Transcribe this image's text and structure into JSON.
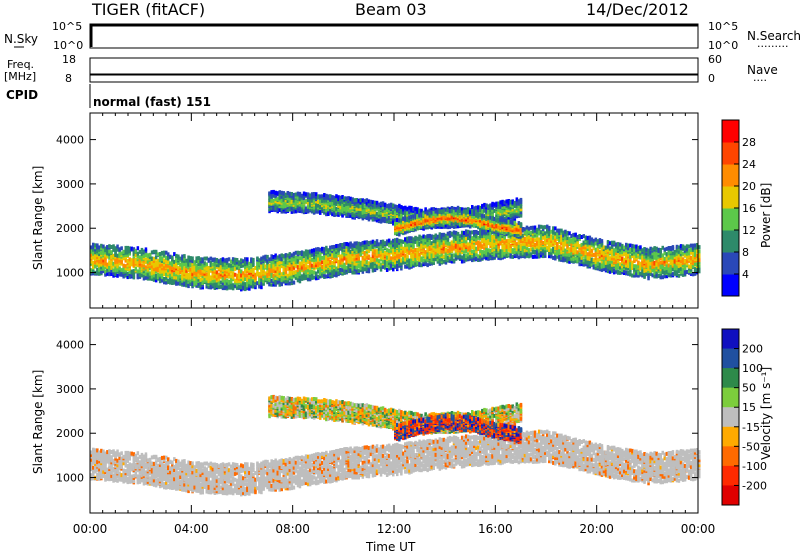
{
  "header": {
    "title": "TIGER (fitACF)",
    "beam": "Beam 03",
    "date": "14/Dec/2012"
  },
  "panels": {
    "nsky": {
      "label": "N.Sky",
      "ticks": [
        "10^5",
        "10^0"
      ],
      "right_ticks": [
        "10^5",
        "10^0"
      ],
      "right_label": "N.Search",
      "right_dots": "·········"
    },
    "freq": {
      "label": "Freq.",
      "unit": "[MHz]",
      "ticks": [
        "18",
        "8"
      ],
      "right_ticks": [
        "60",
        "0"
      ],
      "right_label": "Nave",
      "right_dots": "····"
    },
    "cpid": {
      "label": "CPID",
      "value": "normal (fast) 151"
    }
  },
  "chart_data": [
    {
      "type": "heatmap",
      "name": "power",
      "ylabel": "Slant Range [km]",
      "yticks": [
        "4000",
        "3000",
        "2000",
        "1000"
      ],
      "ytick_values": [
        4000,
        3000,
        2000,
        1000
      ],
      "ylim": [
        200,
        4600
      ],
      "xlim": [
        0,
        24
      ],
      "colorbar": {
        "label": "Power [dB]",
        "ticks": [
          "28",
          "24",
          "20",
          "16",
          "12",
          "8",
          "4"
        ],
        "colors": [
          "#0000ff",
          "#2a48b8",
          "#2e8a6a",
          "#5cc84a",
          "#e8c800",
          "#ff8c00",
          "#ff4500",
          "#ff0000"
        ],
        "range": [
          0,
          32
        ]
      },
      "bands": [
        {
          "hours": [
            0,
            2,
            4,
            6,
            8,
            10,
            12,
            14,
            16,
            18,
            20,
            22,
            24
          ],
          "center_km": [
            1350,
            1250,
            1050,
            1000,
            1150,
            1350,
            1450,
            1600,
            1700,
            1750,
            1450,
            1250,
            1350
          ],
          "width_km": 320,
          "peak_db": 22
        },
        {
          "hours": [
            7,
            9,
            11,
            13,
            15,
            17
          ],
          "center_km": [
            2650,
            2600,
            2450,
            2250,
            2300,
            2500
          ],
          "width_km": 200,
          "peak_db": 16
        },
        {
          "hours": [
            12,
            13,
            14,
            15,
            16,
            17
          ],
          "center_km": [
            2050,
            2200,
            2300,
            2250,
            2100,
            2000
          ],
          "width_km": 150,
          "peak_db": 26
        }
      ]
    },
    {
      "type": "heatmap",
      "name": "velocity",
      "ylabel": "Slant Range [km]",
      "yticks": [
        "4000",
        "3000",
        "2000",
        "1000"
      ],
      "ytick_values": [
        4000,
        3000,
        2000,
        1000
      ],
      "ylim": [
        200,
        4600
      ],
      "xlim": [
        0,
        24
      ],
      "xticks": [
        "00:00",
        "04:00",
        "08:00",
        "12:00",
        "16:00",
        "20:00",
        "00:00"
      ],
      "xtick_values": [
        0,
        4,
        8,
        12,
        16,
        20,
        24
      ],
      "xlabel": "Time UT",
      "colorbar": {
        "label": "Velocity [m s⁻¹]",
        "ticks": [
          "200",
          "100",
          "50",
          "15",
          "-15",
          "-50",
          "-100",
          "-200"
        ],
        "colors": [
          "#1010c0",
          "#2050a0",
          "#2e8a4a",
          "#7ccd3c",
          "#bebebe",
          "#ffaa00",
          "#ff6a00",
          "#ff2a00",
          "#e00000"
        ],
        "range": [
          -250,
          250
        ]
      }
    }
  ]
}
